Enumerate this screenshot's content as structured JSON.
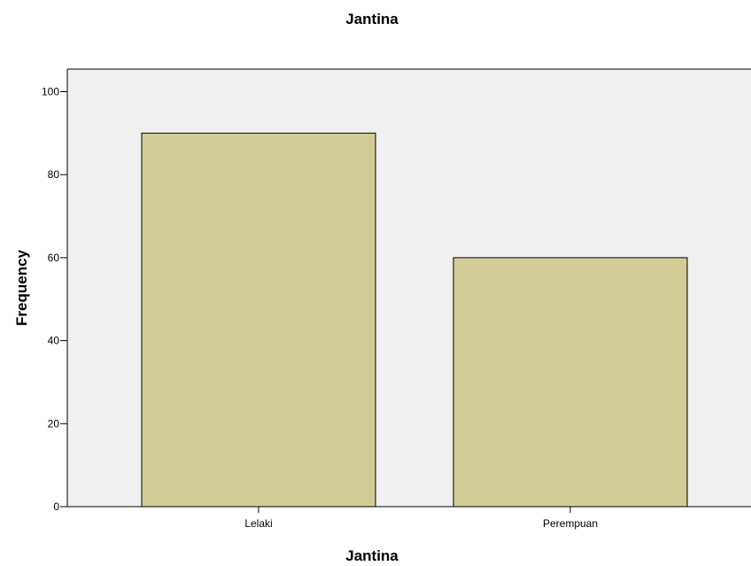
{
  "chart_data": {
    "type": "bar",
    "title": "Jantina",
    "xlabel": "Jantina",
    "ylabel": "Frequency",
    "categories": [
      "Lelaki",
      "Perempuan"
    ],
    "values": [
      90,
      60
    ],
    "ylim": [
      0,
      100
    ],
    "yticks": [
      0,
      20,
      40,
      60,
      80,
      100
    ],
    "grid": false,
    "legend": "none",
    "colors": {
      "bar_fill": "#d2cc96",
      "bar_stroke": "#000000",
      "plot_background": "#f0f0f0"
    }
  }
}
